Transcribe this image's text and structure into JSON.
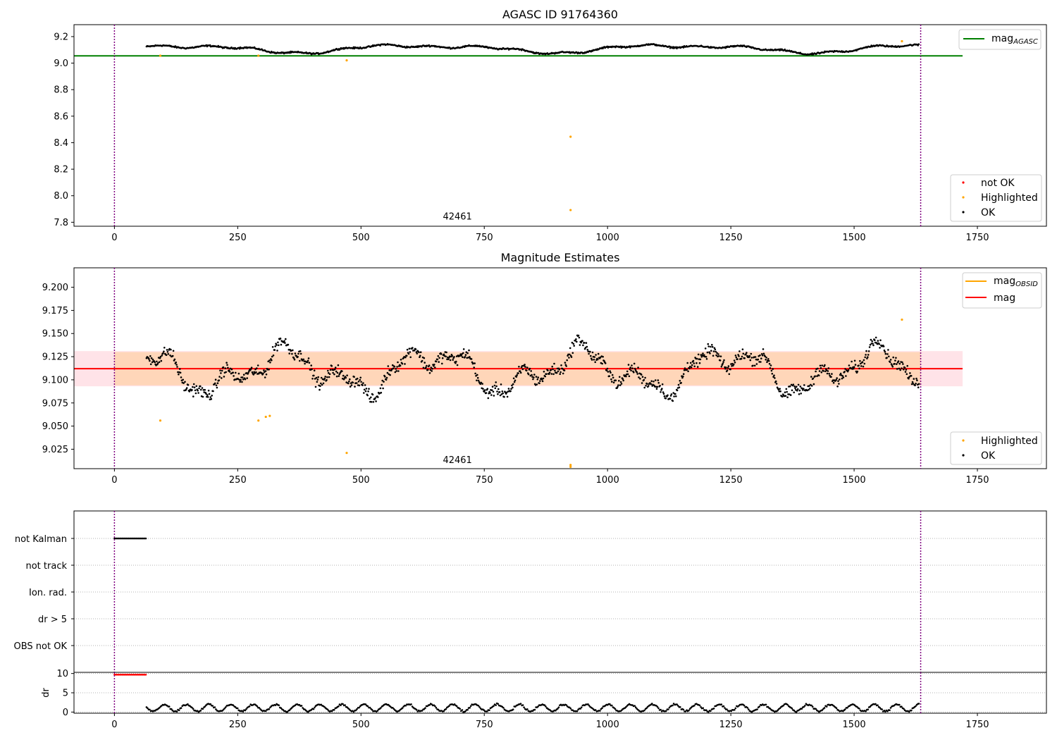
{
  "chart_data": [
    {
      "type": "scatter",
      "title": "AGASC ID 91764360",
      "xlim": [
        -82,
        1890
      ],
      "ylim": [
        7.77,
        9.29
      ],
      "xticks": [
        "0",
        "250",
        "500",
        "750",
        "1000",
        "1250",
        "1500",
        "1750"
      ],
      "xtick_values": [
        0,
        250,
        500,
        750,
        1000,
        1250,
        1500,
        1750
      ],
      "yticks": [
        "7.8",
        "8.0",
        "8.2",
        "8.4",
        "8.6",
        "8.8",
        "9.0",
        "9.2"
      ],
      "ytick_values": [
        7.8,
        8.0,
        8.2,
        8.4,
        8.6,
        8.8,
        9.0,
        9.2
      ],
      "vlines": [
        0,
        1635
      ],
      "annotation": {
        "text": "42461",
        "x": 817,
        "y": 7.82
      },
      "reference_line": {
        "name": "mag",
        "subscript": "AGASC",
        "value": 9.055,
        "x_end": 1720,
        "color": "#008000"
      },
      "ok_series": {
        "x_start": 65,
        "x_end": 1632,
        "base": 9.11,
        "waves": [
          [
            0.025,
            520,
            0.3
          ],
          [
            0.012,
            260,
            1.7
          ],
          [
            0.008,
            90,
            0.9
          ]
        ],
        "noise": 0.006,
        "step": 1.5
      },
      "highlighted_points": [
        [
          93,
          9.056
        ],
        [
          292,
          9.056
        ],
        [
          471,
          9.021
        ],
        [
          925,
          8.445
        ],
        [
          925,
          7.892
        ],
        [
          1597,
          9.165
        ]
      ],
      "legend": {
        "entries": [
          "not OK",
          "Highlighted",
          "OK"
        ],
        "colors": [
          "#ff0000",
          "#ffa500",
          "#000000"
        ],
        "placement": "lower-right"
      },
      "legend_lines": {
        "entries": [
          {
            "label": "mag",
            "subscript": "AGASC",
            "color": "#008000"
          }
        ],
        "placement": "upper-right"
      }
    },
    {
      "type": "scatter",
      "title": "Magnitude Estimates",
      "xlim": [
        -82,
        1890
      ],
      "ylim": [
        9.004,
        9.221
      ],
      "xticks": [
        "0",
        "250",
        "500",
        "750",
        "1000",
        "1250",
        "1500",
        "1750"
      ],
      "xtick_values": [
        0,
        250,
        500,
        750,
        1000,
        1250,
        1500,
        1750
      ],
      "yticks": [
        "9.025",
        "9.050",
        "9.075",
        "9.100",
        "9.125",
        "9.150",
        "9.175",
        "9.200"
      ],
      "ytick_values": [
        9.025,
        9.05,
        9.075,
        9.1,
        9.125,
        9.15,
        9.175,
        9.2
      ],
      "vlines": [
        0,
        1635
      ],
      "annotation": {
        "text": "42461",
        "x": 817,
        "y": 9.01
      },
      "mean_line": {
        "name": "mag",
        "value": 9.112,
        "x_end": 1720,
        "color": "#ff0000"
      },
      "band_pink": {
        "lo": 9.093,
        "hi": 9.131,
        "x_end": 1720,
        "color": "#ffc0cb"
      },
      "band_obsid": {
        "lo": 9.094,
        "hi": 9.13,
        "x_end": 1635,
        "color": "#ffa500"
      },
      "ok_series": {
        "x_start": 65,
        "x_end": 1632,
        "base": 9.11,
        "waves": [
          [
            0.018,
            300,
            0.6
          ],
          [
            0.011,
            120,
            2.2
          ],
          [
            0.006,
            55,
            1.1
          ]
        ],
        "noise": 0.007,
        "step": 1.3
      },
      "highlighted_points": [
        [
          93,
          9.056
        ],
        [
          292,
          9.056
        ],
        [
          307,
          9.06
        ],
        [
          315,
          9.061
        ],
        [
          471,
          9.021
        ],
        [
          925,
          9.008
        ],
        [
          925,
          9.006
        ],
        [
          1597,
          9.165
        ]
      ],
      "legend": {
        "entries": [
          "Highlighted",
          "OK"
        ],
        "colors": [
          "#ffa500",
          "#000000"
        ],
        "placement": "lower-right"
      },
      "legend_lines": {
        "entries": [
          {
            "label": "mag",
            "subscript": "OBSID",
            "color": "#ffa500"
          },
          {
            "label": "mag",
            "subscript": "",
            "color": "#ff0000"
          }
        ],
        "placement": "upper-right"
      }
    },
    {
      "type": "scatter",
      "title": "",
      "xlim": [
        -82,
        1890
      ],
      "flag_rows": [
        "not Kalman",
        "not track",
        "Ion. rad.",
        "dr > 5",
        "OBS not OK"
      ],
      "flag_segments": [
        {
          "row": "not Kalman",
          "x_start": 0,
          "x_end": 65
        }
      ],
      "vlines": [
        0,
        1635
      ]
    },
    {
      "type": "scatter",
      "title": "",
      "xlim": [
        -82,
        1890
      ],
      "ylim": [
        -0.3,
        10.3
      ],
      "ylabel": "dr",
      "xticks": [
        "0",
        "250",
        "500",
        "750",
        "1000",
        "1250",
        "1500",
        "1750"
      ],
      "xtick_values": [
        0,
        250,
        500,
        750,
        1000,
        1250,
        1500,
        1750
      ],
      "yticks": [
        "0",
        "5",
        "10"
      ],
      "ytick_values": [
        0,
        5,
        10
      ],
      "vlines": [
        0,
        1635
      ],
      "capped_series": {
        "x_start": 0,
        "x_end": 65,
        "value": 9.7,
        "color": "#ff0000"
      },
      "ok_series": {
        "x_start": 65,
        "x_end": 1632,
        "base": 1.1,
        "amp": 0.9,
        "period": 45,
        "step": 2.2
      }
    }
  ]
}
